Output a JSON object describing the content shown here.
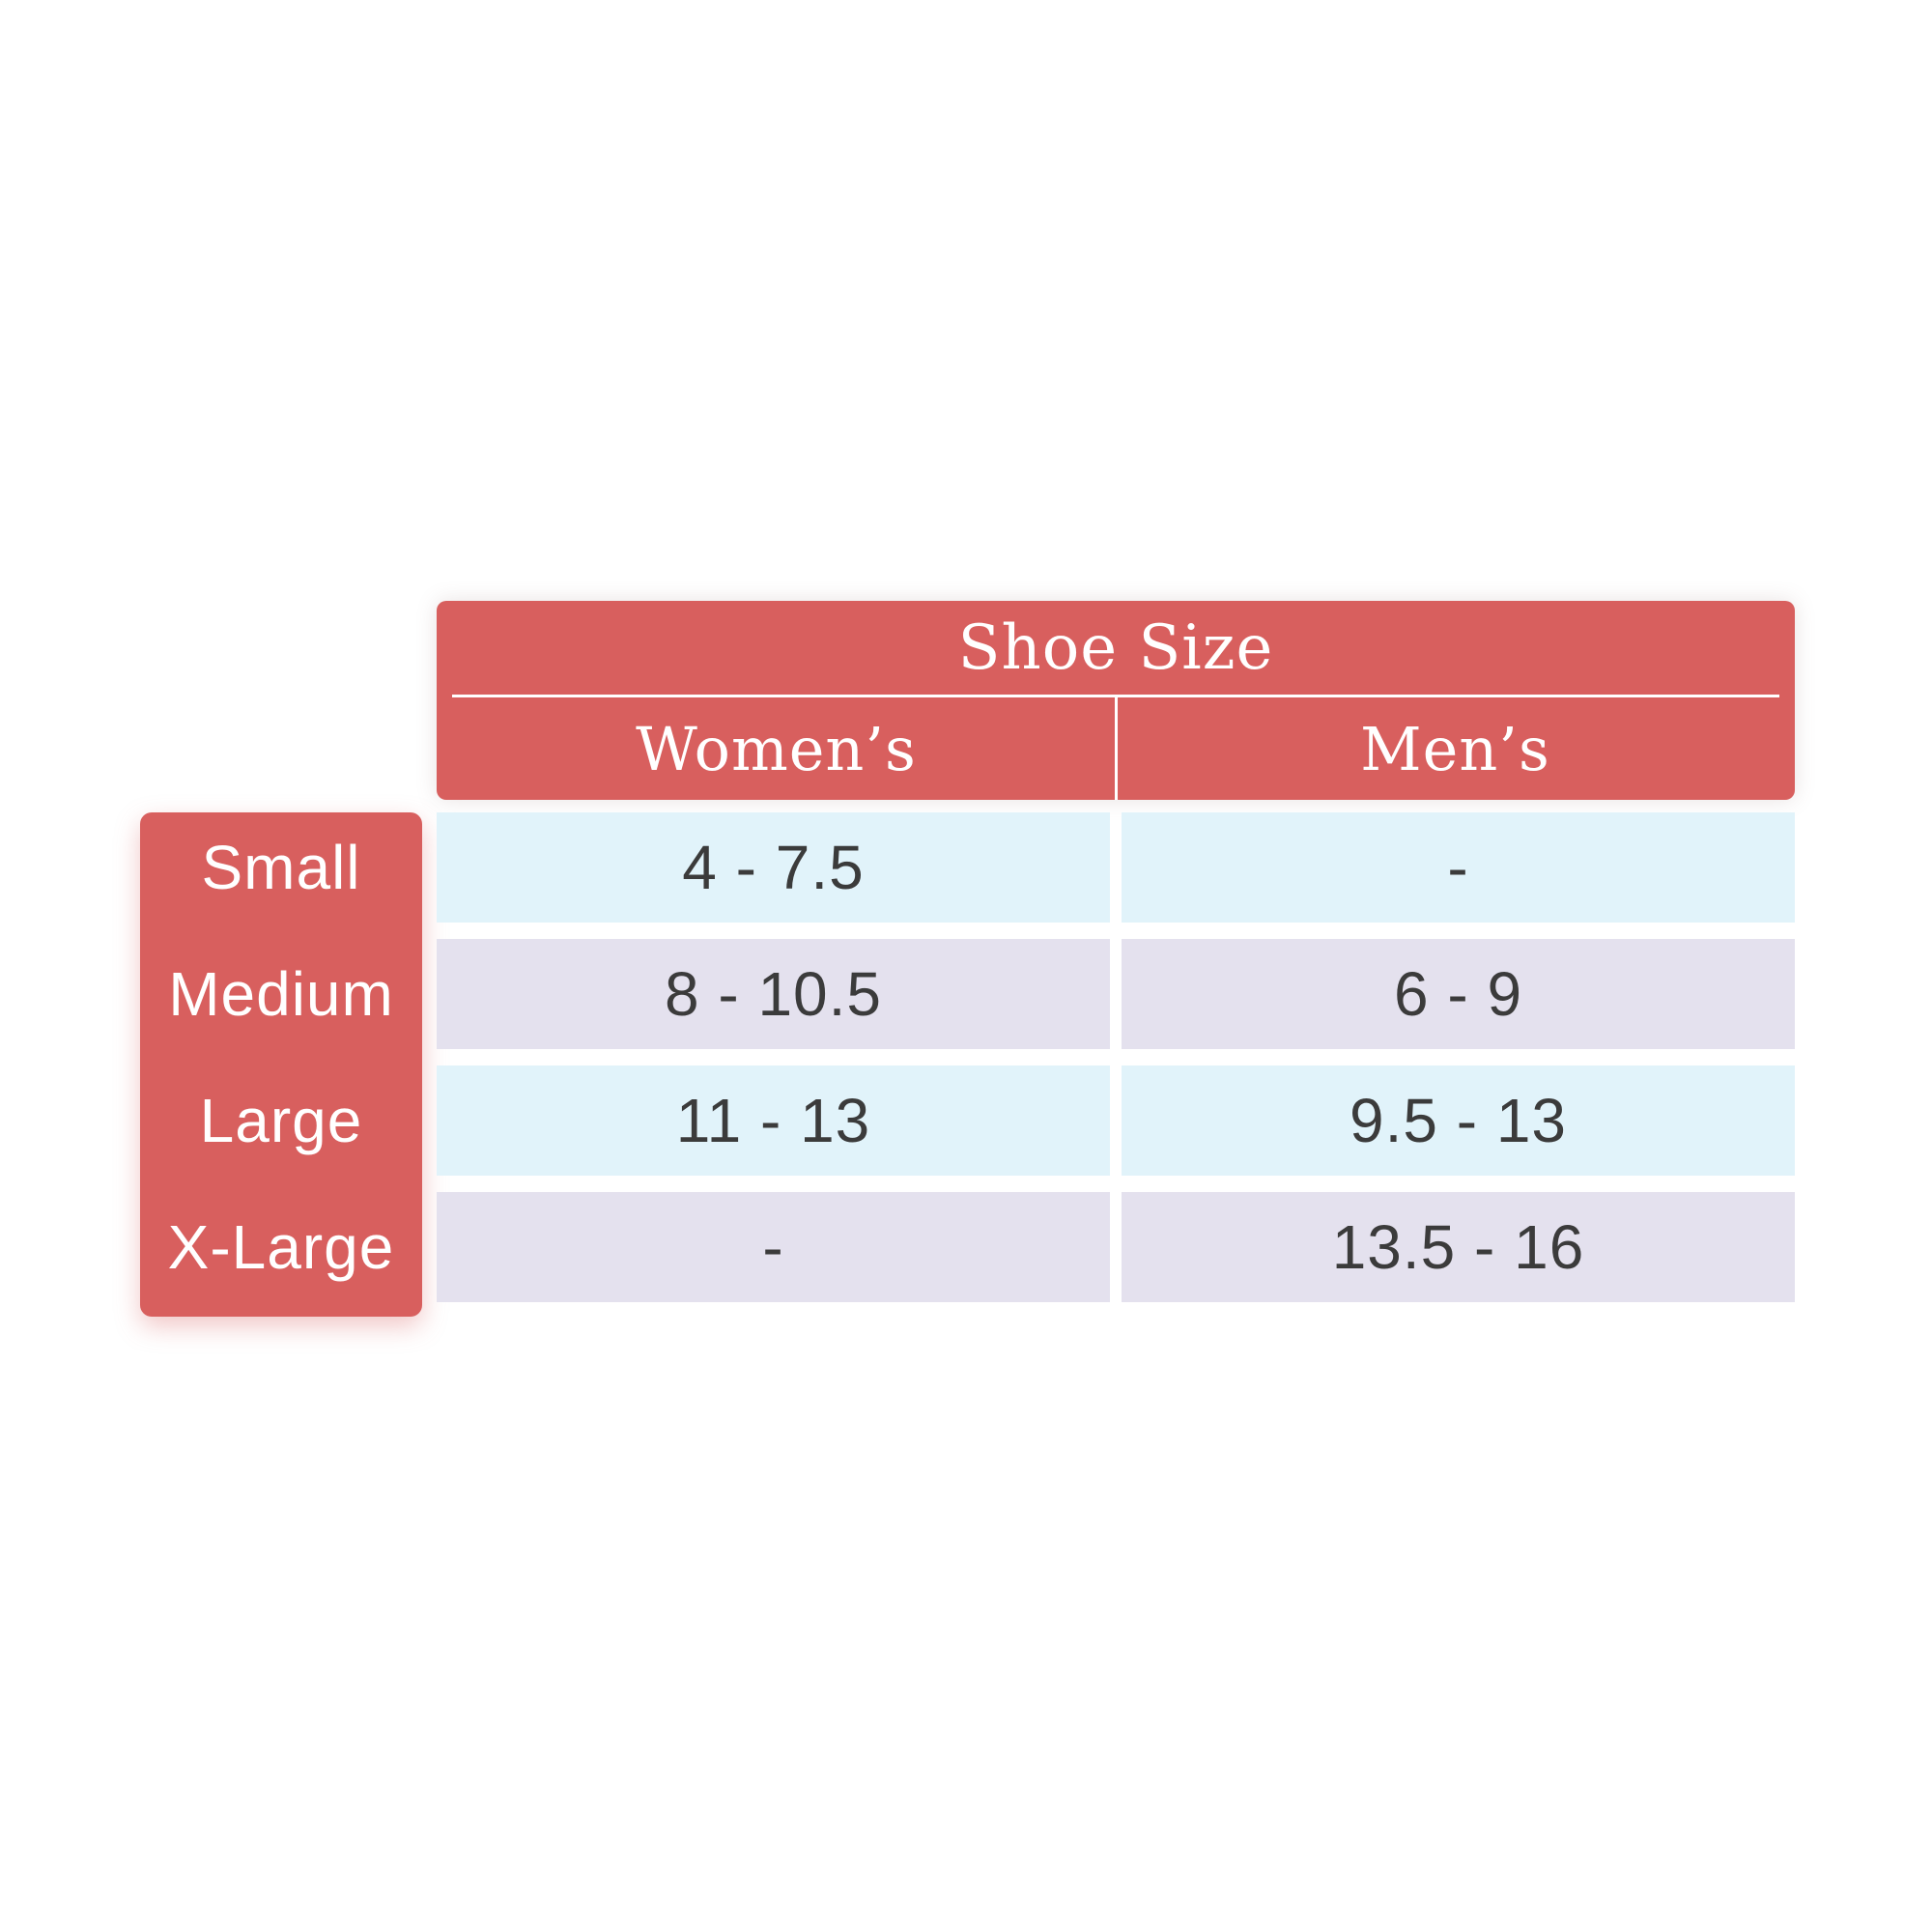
{
  "page": {
    "background": "#ffffff"
  },
  "chart_data": {
    "type": "table",
    "title": "Shoe Size",
    "columns": [
      "Women’s",
      "Men’s"
    ],
    "rows": [
      {
        "label": "Small",
        "womens": "4 - 7.5",
        "mens": "-"
      },
      {
        "label": "Medium",
        "womens": "8 - 10.5",
        "mens": "6 - 9"
      },
      {
        "label": "Large",
        "womens": "11 - 13",
        "mens": "9.5 - 13"
      },
      {
        "label": "X-Large",
        "womens": "-",
        "mens": "13.5 - 16"
      }
    ],
    "colors": {
      "header_bg": "#d85f5e",
      "row_label_bg": "#d85f5e",
      "row_stripe_blue": "#e1f3fa",
      "row_stripe_lavender": "#e4e1ee",
      "header_text": "#ffffff",
      "cell_text": "#3b3b3b",
      "divider": "#ffffff"
    },
    "layout_hints": {
      "row_label_column_side": "left",
      "striped": true,
      "column_divider": "white gap centered",
      "header_spans_both_columns": true
    }
  }
}
